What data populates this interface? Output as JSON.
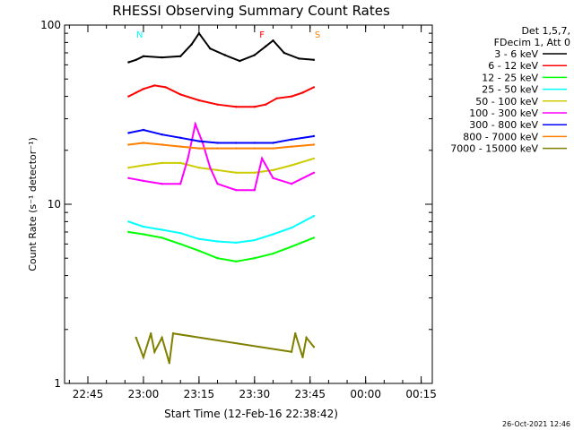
{
  "chart_data": {
    "type": "line",
    "title": "RHESSI Observing Summary Count Rates",
    "xlabel": "Start Time (12-Feb-16 22:38:42)",
    "ylabel": "Count Rate (s⁻¹ detector⁻¹)",
    "y_scale": "log",
    "ylim": [
      1,
      100
    ],
    "yticks": [
      "1",
      "10",
      "100"
    ],
    "xlim": [
      "22:38:42",
      "00:18:00"
    ],
    "xticks": [
      "22:45",
      "23:00",
      "23:15",
      "23:30",
      "23:45",
      "00:00",
      "00:15"
    ],
    "legend_header": [
      "Det 1,5,7,",
      "FDecim 1, Att 0"
    ],
    "legend_position": "top-right, outside plot",
    "timestamp": "26-Oct-2021 12:46",
    "flag_labels": [
      {
        "text": "F",
        "color": "#ff0000",
        "x": "23:32"
      },
      {
        "text": "S",
        "color": "#ff7f00",
        "x": "23:47"
      },
      {
        "text": "N",
        "color": "#00ffff",
        "x": "22:59"
      }
    ],
    "series": [
      {
        "name": "3 - 6 keV",
        "color": "#000000",
        "x": [
          "22:56",
          "22:58",
          "23:00",
          "23:05",
          "23:10",
          "23:13",
          "23:15",
          "23:18",
          "23:22",
          "23:26",
          "23:30",
          "23:33",
          "23:35",
          "23:38",
          "23:42",
          "23:46"
        ],
        "y": [
          62,
          64,
          67,
          66,
          67,
          78,
          90,
          74,
          68,
          63,
          68,
          76,
          82,
          70,
          65,
          64
        ]
      },
      {
        "name": "6 - 12 keV",
        "color": "#ff0000",
        "x": [
          "22:56",
          "22:58",
          "23:00",
          "23:03",
          "23:06",
          "23:10",
          "23:15",
          "23:20",
          "23:25",
          "23:30",
          "23:33",
          "23:36",
          "23:40",
          "23:43",
          "23:46"
        ],
        "y": [
          40,
          42,
          44,
          46,
          45,
          41,
          38,
          36,
          35,
          35,
          36,
          39,
          40,
          42,
          45
        ]
      },
      {
        "name": "12 - 25 keV",
        "color": "#00ff00",
        "x": [
          "22:56",
          "23:00",
          "23:05",
          "23:10",
          "23:15",
          "23:20",
          "23:25",
          "23:30",
          "23:35",
          "23:40",
          "23:46"
        ],
        "y": [
          7.0,
          6.8,
          6.5,
          6.0,
          5.5,
          5.0,
          4.8,
          5.0,
          5.3,
          5.8,
          6.5
        ]
      },
      {
        "name": "25 - 50 keV",
        "color": "#00ffff",
        "x": [
          "22:56",
          "23:00",
          "23:05",
          "23:10",
          "23:15",
          "23:20",
          "23:25",
          "23:30",
          "23:35",
          "23:40",
          "23:46"
        ],
        "y": [
          8.0,
          7.5,
          7.2,
          6.9,
          6.4,
          6.2,
          6.1,
          6.3,
          6.8,
          7.4,
          8.6
        ]
      },
      {
        "name": "50 - 100 keV",
        "color": "#cccc00",
        "x": [
          "22:56",
          "23:00",
          "23:05",
          "23:10",
          "23:15",
          "23:20",
          "23:25",
          "23:30",
          "23:35",
          "23:40",
          "23:46"
        ],
        "y": [
          16,
          16.5,
          17,
          17,
          16,
          15.5,
          15,
          15,
          15.5,
          16.5,
          18
        ]
      },
      {
        "name": "100 - 300 keV",
        "color": "#ff00ff",
        "x": [
          "22:56",
          "23:00",
          "23:05",
          "23:10",
          "23:12",
          "23:14",
          "23:16",
          "23:18",
          "23:20",
          "23:25",
          "23:30",
          "23:32",
          "23:35",
          "23:40",
          "23:46"
        ],
        "y": [
          14,
          13.5,
          13,
          13,
          18,
          28,
          22,
          16,
          13,
          12,
          12,
          18,
          14,
          13,
          15
        ]
      },
      {
        "name": "300 - 800 keV",
        "color": "#0000ff",
        "x": [
          "22:56",
          "23:00",
          "23:05",
          "23:10",
          "23:15",
          "23:20",
          "23:25",
          "23:30",
          "23:35",
          "23:40",
          "23:46"
        ],
        "y": [
          25,
          26,
          24.5,
          23.5,
          22.5,
          22,
          22,
          22,
          22,
          23,
          24
        ]
      },
      {
        "name": "800 - 7000 keV",
        "color": "#ff7f00",
        "x": [
          "22:56",
          "23:00",
          "23:05",
          "23:10",
          "23:15",
          "23:20",
          "23:25",
          "23:30",
          "23:35",
          "23:40",
          "23:46"
        ],
        "y": [
          21.5,
          22,
          21.5,
          21,
          20.5,
          20.5,
          20.5,
          20.5,
          20.5,
          21,
          21.5
        ]
      },
      {
        "name": "7000 - 15000 keV",
        "color": "#808000",
        "x": [
          "22:58",
          "23:00",
          "23:02",
          "23:03",
          "23:05",
          "23:07",
          "23:08",
          "23:40",
          "23:41",
          "23:43",
          "23:44",
          "23:46"
        ],
        "y": [
          1.8,
          1.4,
          1.9,
          1.5,
          1.8,
          1.3,
          1.9,
          1.5,
          1.9,
          1.4,
          1.8,
          1.6
        ]
      }
    ]
  }
}
